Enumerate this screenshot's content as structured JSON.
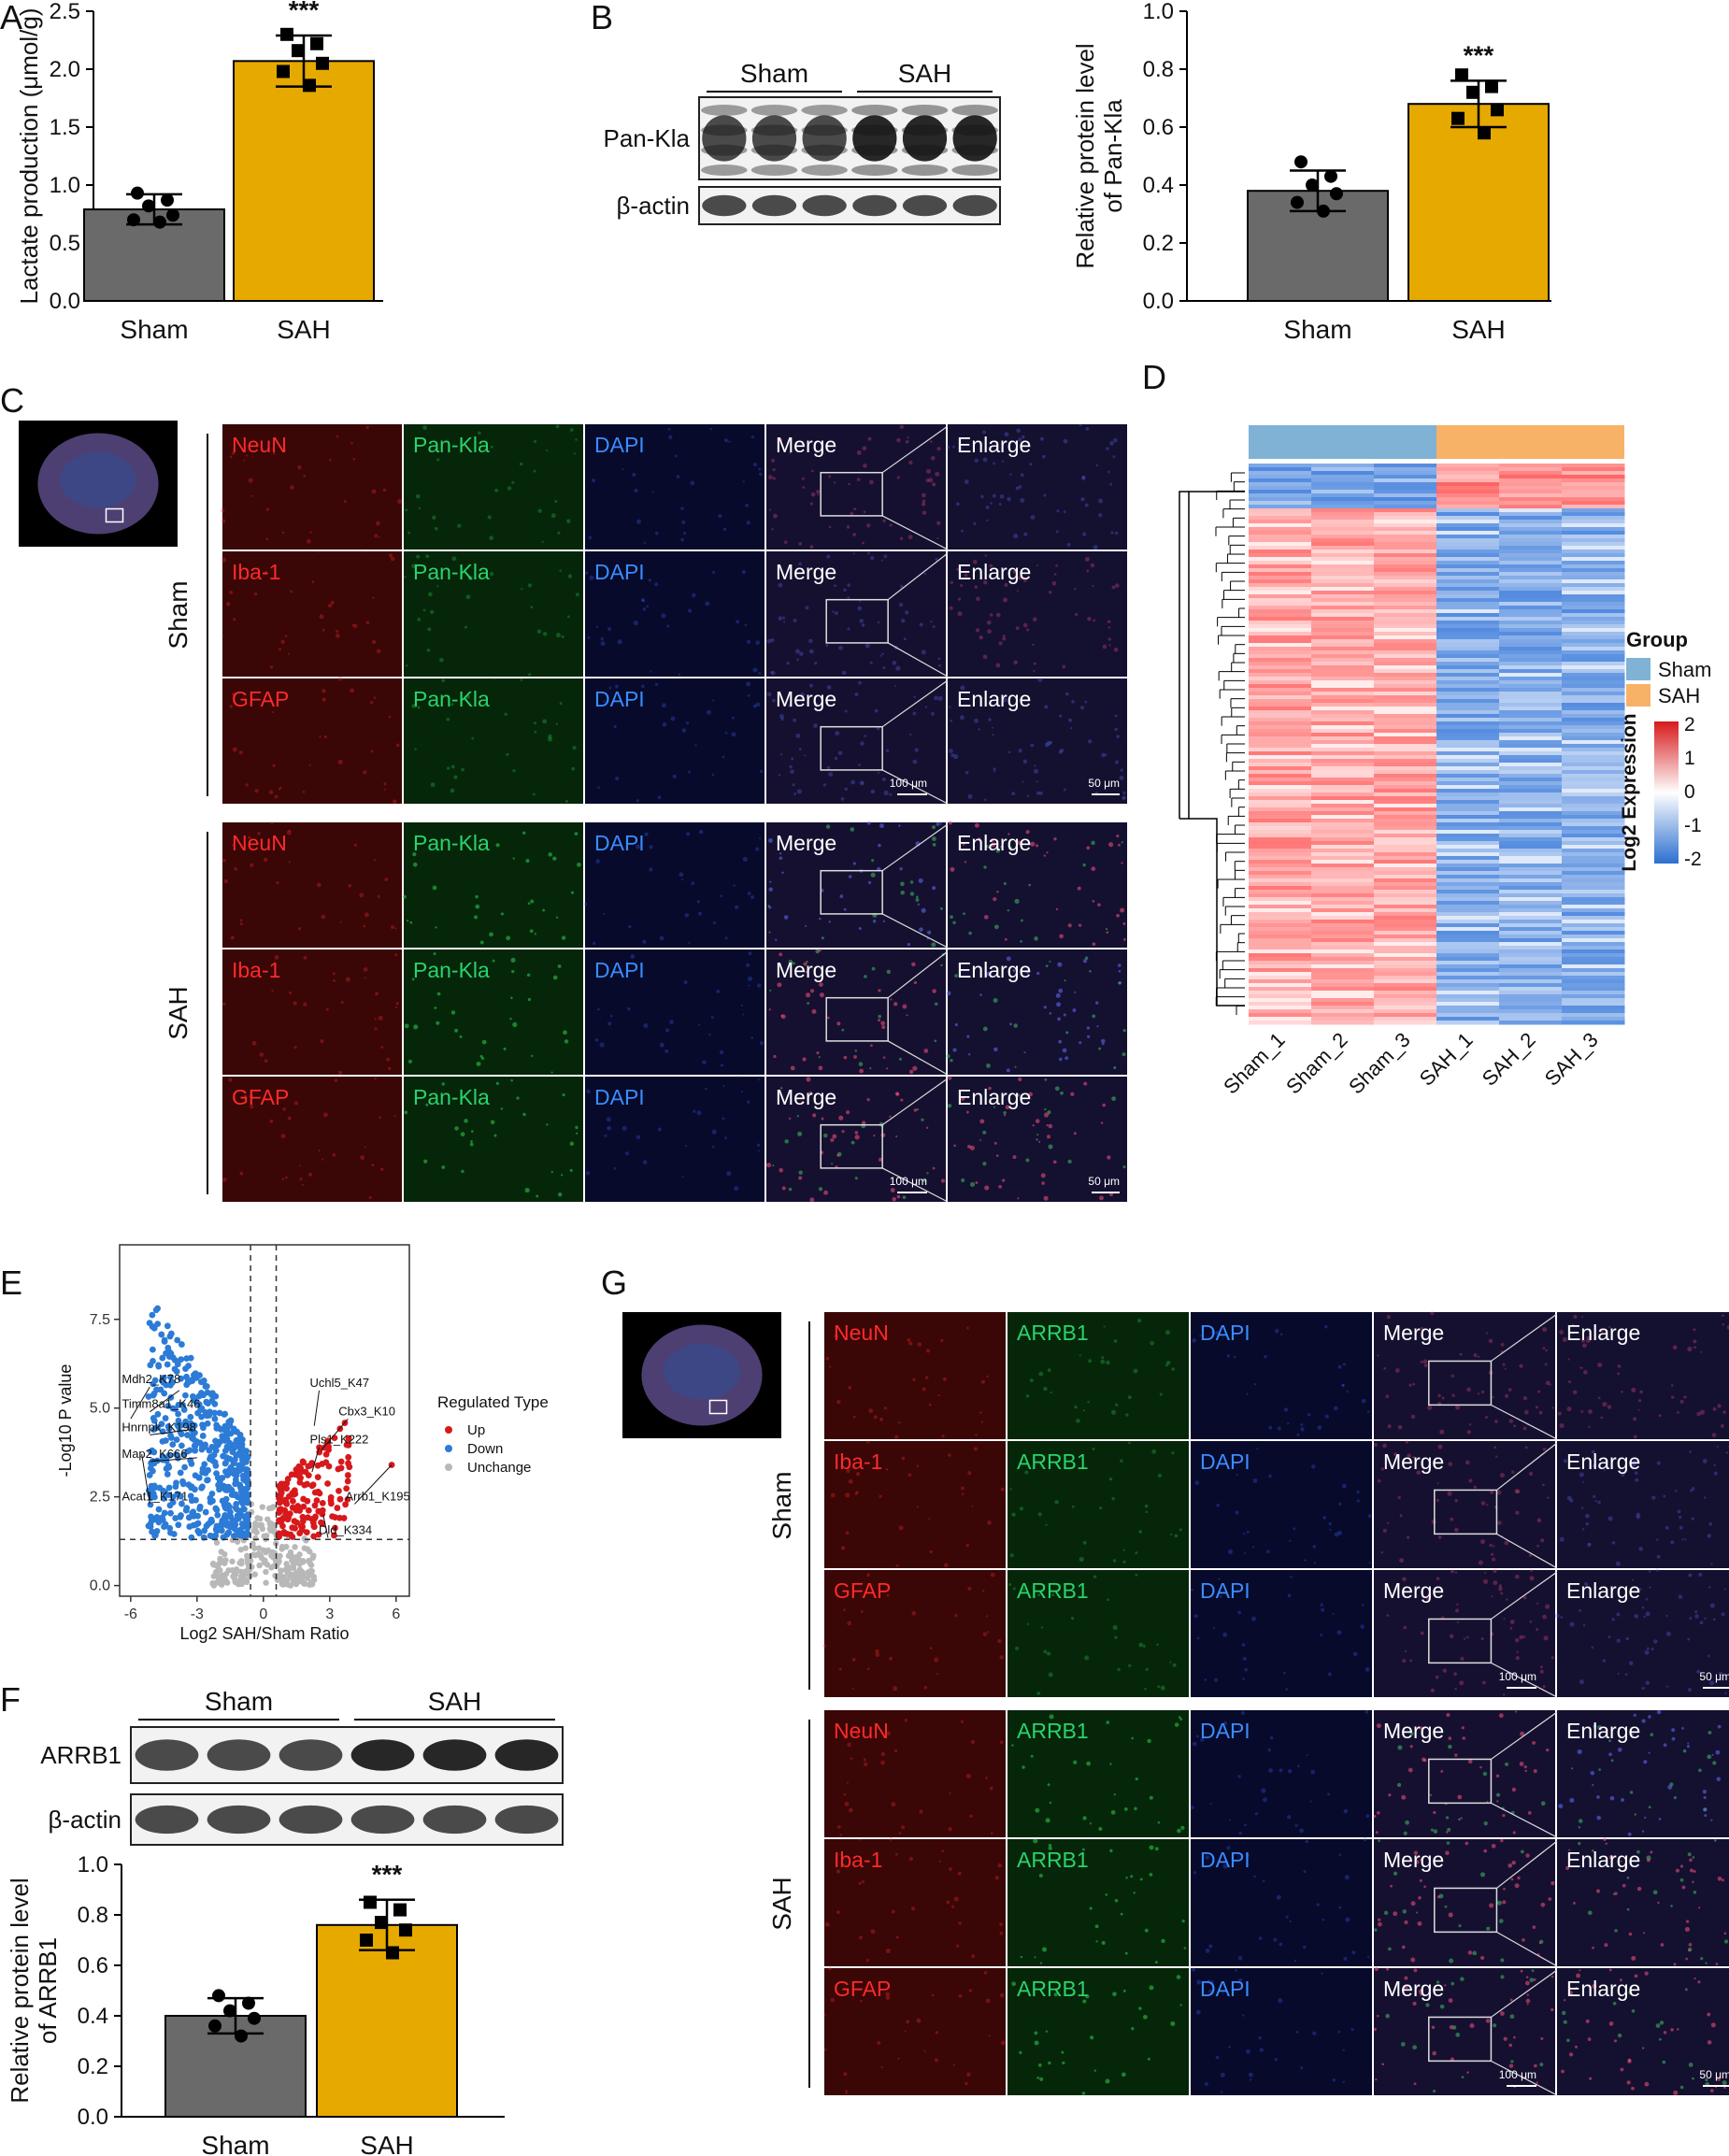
{
  "colors": {
    "sham": "#6a6a6a",
    "sah": "#e6a900",
    "up": "#d7191c",
    "down": "#2c7bd6",
    "unchange": "#b8b8b8",
    "hm_sham": "#7fb2d5",
    "hm_sah": "#f7b267"
  },
  "panels": {
    "A": {
      "letter": "A",
      "chart_data": {
        "type": "bar",
        "categories": [
          "Sham",
          "SAH"
        ],
        "values": [
          0.79,
          2.07
        ],
        "errors": [
          0.13,
          0.22
        ],
        "points": [
          [
            0.93,
            0.87,
            0.82,
            0.74,
            0.7,
            0.68
          ],
          [
            2.3,
            2.22,
            2.16,
            2.05,
            1.98,
            1.86
          ]
        ],
        "ylabel": "Lactate production (μmol/g)",
        "ylim": [
          0,
          2.5
        ],
        "yticks": [
          "0.0",
          "0.5",
          "1.0",
          "1.5",
          "2.0",
          "2.5"
        ],
        "significance": "***"
      }
    },
    "B": {
      "letter": "B",
      "blot": {
        "groups": [
          "Sham",
          "SAH"
        ],
        "rows": [
          "Pan-Kla",
          "β-actin"
        ]
      },
      "chart_data": {
        "type": "bar",
        "categories": [
          "Sham",
          "SAH"
        ],
        "values": [
          0.38,
          0.68
        ],
        "errors": [
          0.07,
          0.08
        ],
        "points": [
          [
            0.48,
            0.43,
            0.4,
            0.37,
            0.34,
            0.31
          ],
          [
            0.78,
            0.74,
            0.72,
            0.66,
            0.63,
            0.58
          ]
        ],
        "ylabel": [
          "Relative protein level",
          "of Pan-Kla"
        ],
        "ylim": [
          0,
          1.0
        ],
        "yticks": [
          "0.0",
          "0.2",
          "0.4",
          "0.6",
          "0.8",
          "1.0"
        ],
        "significance": "***"
      }
    },
    "C": {
      "letter": "C",
      "groups": [
        "Sham",
        "SAH"
      ],
      "rows": [
        "NeuN",
        "Iba-1",
        "GFAP"
      ],
      "columns": [
        "Pan-Kla",
        "DAPI",
        "Merge",
        "Enlarge"
      ],
      "scale_merge": "100 μm",
      "scale_enlarge": "50 μm"
    },
    "D": {
      "letter": "D",
      "chart_data": {
        "type": "heatmap",
        "samples": [
          "Sham_1",
          "Sham_2",
          "Sham_3",
          "SAH_1",
          "SAH_2",
          "SAH_3"
        ],
        "legend_group_title": "Group",
        "legend_groups": [
          "Sham",
          "SAH"
        ],
        "colorbar_title": "Log2 Expression",
        "colorbar_ticks": [
          "2",
          "1",
          "0",
          "-1",
          "-2"
        ]
      }
    },
    "E": {
      "letter": "E",
      "chart_data": {
        "type": "scatter",
        "xlabel": "Log2 SAH/Sham Ratio",
        "ylabel": "-Log10 P value",
        "xlim": [
          -6.5,
          6.6
        ],
        "ylim": [
          -0.3,
          9.6
        ],
        "xticks": [
          "-6",
          "-3",
          "0",
          "3",
          "6"
        ],
        "yticks": [
          "0.0",
          "2.5",
          "5.0",
          "7.5"
        ],
        "legend_title": "Regulated Type",
        "legend_items": [
          "Up",
          "Down",
          "Unchange"
        ],
        "labels": [
          {
            "text": "Mdh2_K78",
            "x": -6.0,
            "y": 4.7
          },
          {
            "text": "Timm8a1_K46",
            "x": -3.8,
            "y": 5.5
          },
          {
            "text": "Hnrnpk_K198",
            "x": -3.2,
            "y": 4.4
          },
          {
            "text": "Map2_K666",
            "x": -3.0,
            "y": 3.6
          },
          {
            "text": "Acat1_K171",
            "x": -5.5,
            "y": 3.7
          },
          {
            "text": "Uchl5_K47",
            "x": 2.3,
            "y": 4.5
          },
          {
            "text": "Cbx3_K10",
            "x": 2.6,
            "y": 3.8
          },
          {
            "text": "Pls1_K222",
            "x": 2.2,
            "y": 3.2
          },
          {
            "text": "Arrb1_K195",
            "x": 5.8,
            "y": 3.4
          },
          {
            "text": "Dld_K334",
            "x": 2.7,
            "y": 2.0
          }
        ]
      }
    },
    "F": {
      "letter": "F",
      "blot": {
        "groups": [
          "Sham",
          "SAH"
        ],
        "rows": [
          "ARRB1",
          "β-actin"
        ]
      },
      "chart_data": {
        "type": "bar",
        "categories": [
          "Sham",
          "SAH"
        ],
        "values": [
          0.4,
          0.76
        ],
        "errors": [
          0.07,
          0.1
        ],
        "points": [
          [
            0.48,
            0.45,
            0.42,
            0.39,
            0.36,
            0.32
          ],
          [
            0.85,
            0.82,
            0.77,
            0.74,
            0.7,
            0.65
          ]
        ],
        "ylabel": [
          "Relative protein level",
          "of ARRB1"
        ],
        "ylim": [
          0,
          1.0
        ],
        "yticks": [
          "0.0",
          "0.2",
          "0.4",
          "0.6",
          "0.8",
          "1.0"
        ],
        "significance": "***"
      }
    },
    "G": {
      "letter": "G",
      "groups": [
        "Sham",
        "SAH"
      ],
      "rows": [
        "NeuN",
        "Iba-1",
        "GFAP"
      ],
      "columns": [
        "ARRB1",
        "DAPI",
        "Merge",
        "Enlarge"
      ],
      "scale_merge": "100 μm",
      "scale_enlarge": "50 μm"
    }
  }
}
